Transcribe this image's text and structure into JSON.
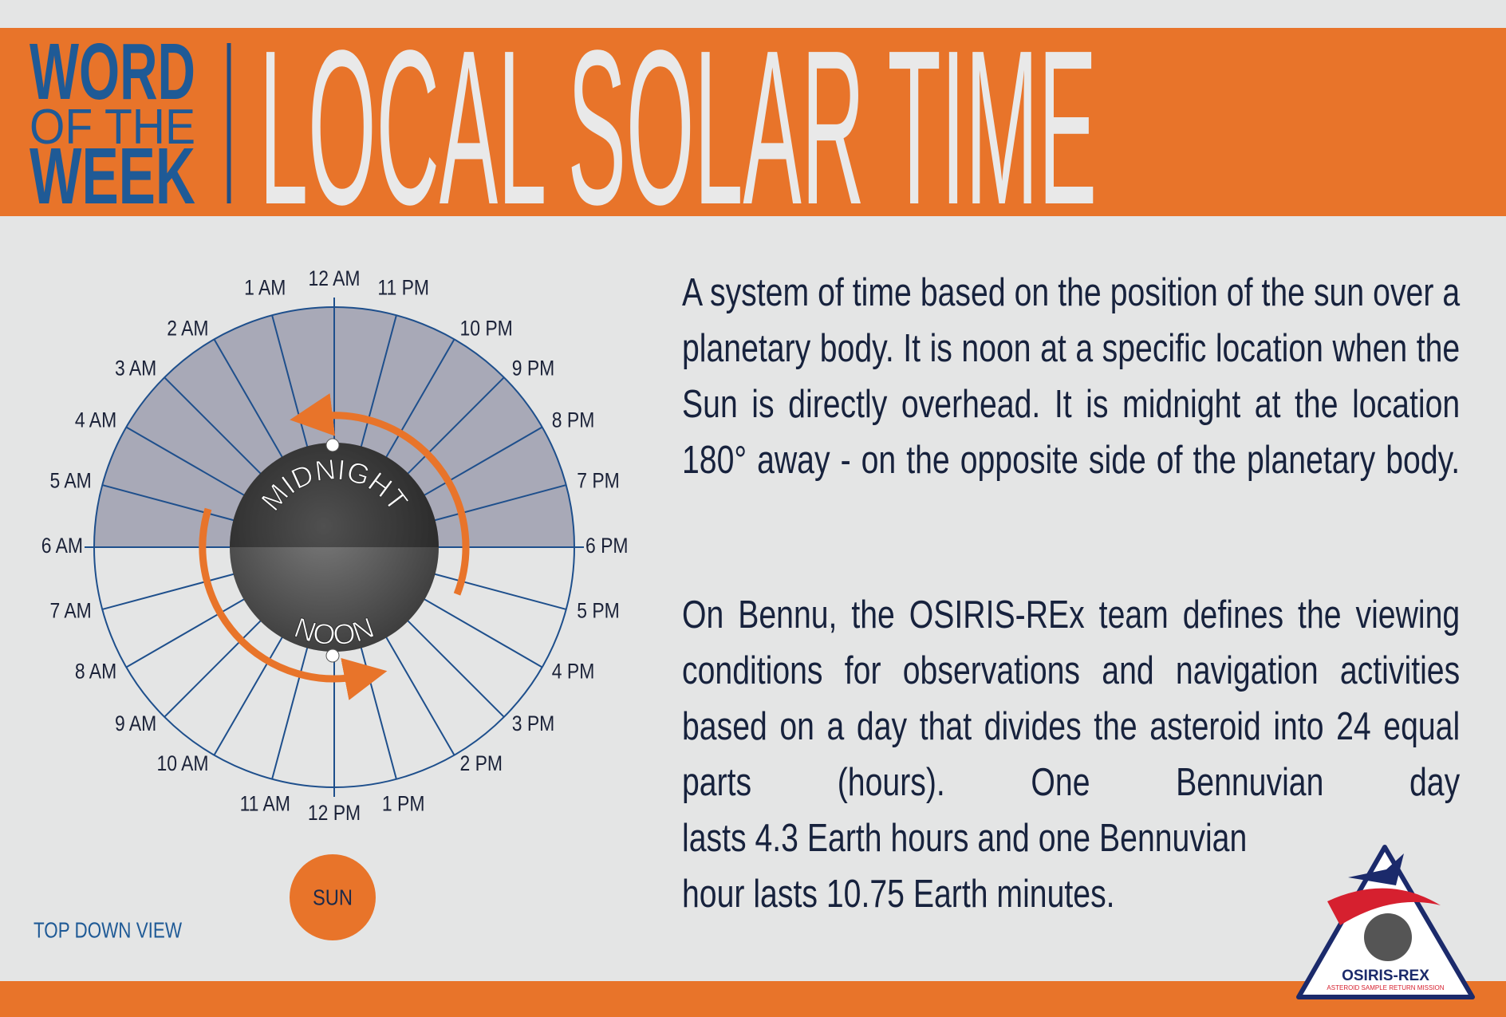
{
  "header": {
    "badge": [
      "WORD",
      "OF THE",
      "WEEK"
    ],
    "title": "LOCAL SOLAR TIME"
  },
  "diagram": {
    "hour_labels": [
      "12 AM",
      "11 PM",
      "10 PM",
      "9 PM",
      "8 PM",
      "7 PM",
      "6 PM",
      "5 PM",
      "4 PM",
      "3 PM",
      "2 PM",
      "1 PM",
      "12 PM",
      "11 AM",
      "10 AM",
      "9 AM",
      "8 AM",
      "7 AM",
      "6 AM",
      "5 AM",
      "4 AM",
      "3 AM",
      "2 AM",
      "1 AM"
    ],
    "midnight": "MIDNIGHT",
    "noon": "NOON",
    "sun": "SUN",
    "view": "TOP DOWN VIEW"
  },
  "definition": "A system of time based on the position of the sun over a planetary body. It is noon at a specific location when the Sun is directly overhead. It is midnight at the location 180° away - on the opposite side of the planetary body.",
  "bennu": {
    "text": "On Bennu, the OSIRIS-REx team defines the viewing conditions for observations and navigation activities based on a day that divides the asteroid into 24 equal parts (hours). One Bennuvian day",
    "lines": [
      "lasts 4.3 Earth hours and one Bennuvian",
      "hour lasts 10.75 Earth minutes."
    ]
  },
  "logo": {
    "name": "OSIRIS-REX",
    "tagline": "ASTEROID SAMPLE RETURN MISSION"
  }
}
